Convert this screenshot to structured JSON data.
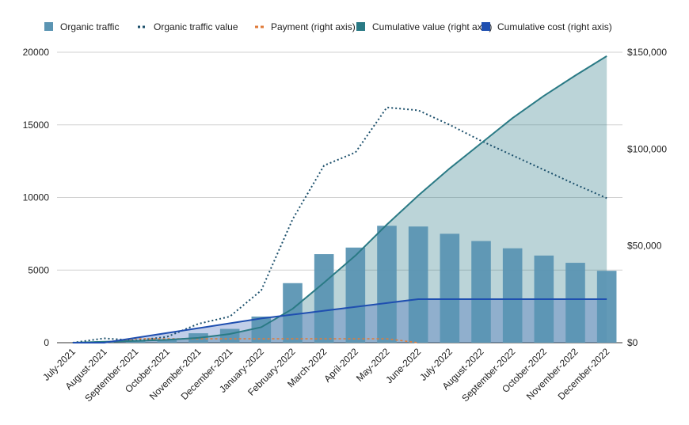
{
  "chart_data": {
    "type": "combo",
    "categories": [
      "July-2021",
      "August-2021",
      "September-2021",
      "October-2021",
      "November-2021",
      "December-2021",
      "January-2022",
      "February-2022",
      "March-2022",
      "April-2022",
      "May-2022",
      "June-2022",
      "July-2022",
      "August-2022",
      "September-2022",
      "October-2022",
      "November-2022",
      "December-2022"
    ],
    "left_axis": {
      "ylim": [
        0,
        20000
      ],
      "ticks": [
        "0",
        "5000",
        "10000",
        "15000",
        "20000"
      ],
      "tick_values": [
        0,
        5000,
        10000,
        15000,
        20000
      ]
    },
    "right_axis": {
      "ylim": [
        0,
        150000
      ],
      "ticks": [
        "$0",
        "$50,000",
        "$100,000",
        "$150,000"
      ],
      "tick_values": [
        0,
        50000,
        100000,
        150000
      ]
    },
    "grid": true,
    "legend_position": "top",
    "series": [
      {
        "name": "Organic traffic",
        "kind": "bar",
        "axis": "left",
        "color": "#5b95b3",
        "values": [
          0,
          100,
          150,
          200,
          650,
          950,
          1800,
          4100,
          6100,
          6550,
          8050,
          8000,
          7500,
          7000,
          6500,
          6000,
          5500,
          4950
        ]
      },
      {
        "name": "Organic traffic value",
        "kind": "dotted-line",
        "axis": "left",
        "color": "#1b4f6b",
        "values": [
          0,
          300,
          150,
          400,
          1300,
          1800,
          3600,
          8500,
          12200,
          13100,
          16200,
          16000,
          15000,
          13900,
          12900,
          11900,
          10900,
          9950
        ]
      },
      {
        "name": "Payment (right axis)",
        "kind": "dashed-line",
        "axis": "right",
        "color": "#e07b39",
        "values": [
          0,
          0,
          2000,
          2000,
          2000,
          2000,
          2000,
          2000,
          2000,
          2000,
          2000,
          0,
          null,
          null,
          null,
          null,
          null,
          null
        ]
      },
      {
        "name": "Cumulative value (right axis)",
        "kind": "area-line",
        "axis": "right",
        "color": "#2a7a85",
        "values": [
          0,
          500,
          900,
          1500,
          2500,
          4500,
          8000,
          17500,
          31000,
          45000,
          61000,
          76000,
          90000,
          103000,
          116000,
          127500,
          138000,
          148000
        ]
      },
      {
        "name": "Cumulative cost (right axis)",
        "kind": "area-line",
        "axis": "right",
        "color": "#1f4fb0",
        "values": [
          0,
          0,
          2500,
          5000,
          7500,
          10000,
          12500,
          14500,
          16500,
          18500,
          20500,
          22500,
          22500,
          22500,
          22500,
          22500,
          22500,
          22500
        ]
      }
    ]
  }
}
